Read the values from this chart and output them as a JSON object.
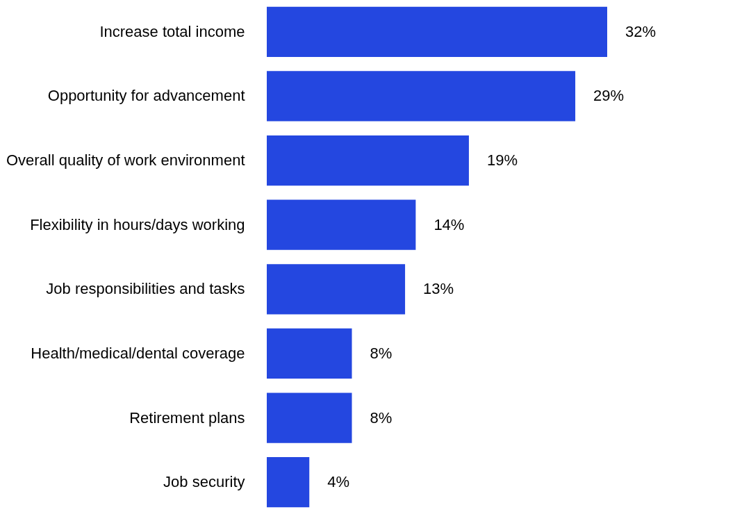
{
  "chart_data": {
    "type": "bar",
    "orientation": "horizontal",
    "categories": [
      "Increase total income",
      "Opportunity for advancement",
      "Overall quality of work environment",
      "Flexibility in hours/days working",
      "Job responsibilities and tasks",
      "Health/medical/dental coverage",
      "Retirement plans",
      "Job security"
    ],
    "values": [
      32,
      29,
      19,
      14,
      13,
      8,
      8,
      4
    ],
    "value_labels": [
      "32%",
      "29%",
      "19%",
      "14%",
      "13%",
      "8%",
      "8%",
      "4%"
    ],
    "color": "#2447e0"
  }
}
